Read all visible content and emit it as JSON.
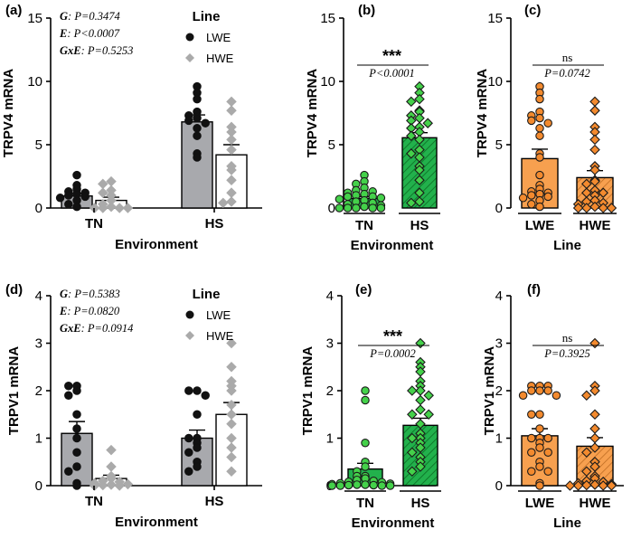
{
  "colors": {
    "lwe_bar": "#a8a9ad",
    "hwe_bar": "#ffffff",
    "lwe_pt": "#111111",
    "hwe_pt": "#aaaaaa",
    "green_bar": "#22b14c",
    "green_pt": "#44d14a",
    "orange_bar": "#f7a04f",
    "orange_pt": "#f38a2e"
  },
  "chart_data": [
    {
      "panel": "(a)",
      "type": "bar",
      "ylabel": "TRPV4 mRNA",
      "xlabel": "Environment",
      "ylim": [
        0,
        15
      ],
      "yticks": [
        0,
        5,
        10,
        15
      ],
      "categories": [
        "TN",
        "HS"
      ],
      "legend": {
        "title": "Line",
        "position": "top-right",
        "items": [
          "LWE",
          "HWE"
        ]
      },
      "stats": [
        {
          "term": "G",
          "value": ": P=0.3474"
        },
        {
          "term": "E",
          "value": ": P<0.0007"
        },
        {
          "term": "GxE",
          "value": ": P=0.5253"
        }
      ],
      "series": [
        {
          "name": "LWE",
          "values": [
            0.95,
            6.8
          ],
          "sem": [
            0.2,
            0.55
          ],
          "points": [
            [
              2.6,
              1.8,
              1.5,
              1.3,
              1.2,
              1.1,
              1.0,
              0.9,
              0.8,
              0.6,
              0.3,
              0.1
            ],
            [
              9.6,
              9.1,
              8.6,
              7.6,
              7.3,
              7.1,
              6.9,
              6.7,
              6.3,
              5.7,
              4.3,
              4.0
            ]
          ]
        },
        {
          "name": "HWE",
          "values": [
            0.6,
            4.2
          ],
          "sem": [
            0.25,
            0.8
          ],
          "points": [
            [
              2.1,
              1.9,
              1.4,
              1.2,
              1.0,
              0.6,
              0.3,
              0.1,
              0.0,
              0.0,
              0.0,
              0.0
            ],
            [
              8.4,
              7.7,
              6.4,
              6.0,
              5.4,
              4.6,
              3.3,
              3.0,
              2.2,
              1.2,
              0.5,
              0.4
            ]
          ]
        }
      ]
    },
    {
      "panel": "(b)",
      "type": "bar",
      "ylabel": "TRPV4 mRNA",
      "xlabel": "Environment",
      "ylim": [
        0,
        15
      ],
      "yticks": [
        0,
        5,
        10,
        15
      ],
      "categories": [
        "TN",
        "HS"
      ],
      "significance": "***",
      "p_text": "P<0.0001",
      "values": [
        0.75,
        5.55
      ],
      "sem": [
        0.15,
        0.4
      ],
      "points": [
        [
          2.6,
          2.1,
          1.9,
          1.6,
          1.4,
          1.3,
          1.2,
          1.1,
          1.0,
          0.9,
          0.9,
          0.8,
          0.7,
          0.6,
          0.5,
          0.4,
          0.3,
          0.2,
          0.1,
          0.0,
          0.0,
          0.0,
          0.0,
          0.0
        ],
        [
          9.6,
          9.1,
          8.6,
          8.4,
          7.7,
          7.6,
          7.3,
          7.1,
          6.9,
          6.7,
          6.4,
          6.3,
          6.0,
          5.7,
          5.4,
          4.6,
          4.3,
          4.0,
          3.3,
          3.0,
          2.2,
          1.2,
          0.5,
          0.4
        ]
      ]
    },
    {
      "panel": "(c)",
      "type": "bar",
      "ylabel": "TRPV4 mRNA",
      "xlabel": "Line",
      "ylim": [
        0,
        15
      ],
      "yticks": [
        0,
        5,
        10,
        15
      ],
      "categories": [
        "LWE",
        "HWE"
      ],
      "significance": "ns",
      "p_text": "P=0.0742",
      "values": [
        3.9,
        2.4
      ],
      "sem": [
        0.75,
        0.55
      ],
      "points": [
        [
          9.6,
          9.1,
          8.6,
          7.6,
          7.3,
          7.1,
          6.9,
          6.7,
          6.3,
          5.7,
          4.3,
          4.0,
          2.6,
          1.8,
          1.5,
          1.3,
          1.2,
          1.1,
          1.0,
          0.9,
          0.8,
          0.6,
          0.3,
          0.1
        ],
        [
          8.4,
          7.7,
          6.4,
          6.0,
          5.4,
          4.6,
          3.3,
          3.0,
          2.2,
          2.1,
          1.9,
          1.4,
          1.2,
          1.2,
          1.0,
          0.6,
          0.5,
          0.4,
          0.3,
          0.1,
          0.0,
          0.0,
          0.0,
          0.0
        ]
      ]
    },
    {
      "panel": "(d)",
      "type": "bar",
      "ylabel": "TRPV1 mRNA",
      "xlabel": "Environment",
      "ylim": [
        0,
        4
      ],
      "yticks": [
        0,
        1,
        2,
        3,
        4
      ],
      "categories": [
        "TN",
        "HS"
      ],
      "legend": {
        "title": "Line",
        "position": "top-right",
        "items": [
          "LWE",
          "HWE"
        ]
      },
      "stats": [
        {
          "term": "G",
          "value": ": P=0.5383"
        },
        {
          "term": "E",
          "value": ": P=0.0820"
        },
        {
          "term": "GxE",
          "value": ": P=0.0914"
        }
      ],
      "series": [
        {
          "name": "LWE",
          "values": [
            1.1,
            1.0
          ],
          "sem": [
            0.25,
            0.17
          ],
          "points": [
            [
              2.1,
              2.1,
              2.0,
              1.9,
              1.5,
              1.2,
              1.0,
              0.7,
              0.4,
              0.3,
              0.05,
              0.0
            ],
            [
              2.0,
              2.0,
              1.9,
              1.5,
              1.0,
              1.0,
              0.9,
              0.8,
              0.7,
              0.5,
              0.4,
              0.3
            ]
          ]
        },
        {
          "name": "HWE",
          "values": [
            0.15,
            1.5
          ],
          "sem": [
            0.07,
            0.25
          ],
          "points": [
            [
              0.75,
              0.4,
              0.2,
              0.15,
              0.1,
              0.08,
              0.05,
              0.03,
              0.02,
              0.01,
              0.0,
              0.0
            ],
            [
              3.0,
              2.5,
              2.2,
              2.1,
              2.0,
              1.7,
              1.5,
              1.3,
              1.0,
              0.8,
              0.6,
              0.3
            ]
          ]
        }
      ]
    },
    {
      "panel": "(e)",
      "type": "bar",
      "ylabel": "TRPV1 mRNA",
      "xlabel": "Environment",
      "ylim": [
        0,
        4
      ],
      "yticks": [
        0,
        1,
        2,
        3,
        4
      ],
      "categories": [
        "TN",
        "HS"
      ],
      "significance": "***",
      "p_text": "P=0.0002",
      "values": [
        0.35,
        1.27
      ],
      "sem": [
        0.12,
        0.15
      ],
      "points": [
        [
          2.0,
          1.8,
          0.9,
          0.5,
          0.4,
          0.3,
          0.2,
          0.2,
          0.15,
          0.12,
          0.1,
          0.08,
          0.07,
          0.05,
          0.04,
          0.03,
          0.02,
          0.02,
          0.01,
          0.01,
          0.0,
          0.0,
          0.0,
          0.0
        ],
        [
          3.0,
          2.6,
          2.5,
          2.4,
          2.2,
          2.1,
          2.0,
          2.0,
          1.9,
          1.8,
          1.6,
          1.5,
          1.5,
          1.3,
          1.1,
          1.0,
          1.0,
          0.9,
          0.8,
          0.7,
          0.6,
          0.5,
          0.4,
          0.3
        ]
      ]
    },
    {
      "panel": "(f)",
      "type": "bar",
      "ylabel": "TRPV1 mRNA",
      "xlabel": "Line",
      "ylim": [
        0,
        4
      ],
      "yticks": [
        0,
        1,
        2,
        3,
        4
      ],
      "categories": [
        "LWE",
        "HWE"
      ],
      "significance": "ns",
      "p_text": "P=0.3925",
      "values": [
        1.05,
        0.83
      ],
      "sem": [
        0.15,
        0.18
      ],
      "points": [
        [
          2.1,
          2.1,
          2.1,
          2.0,
          2.0,
          2.0,
          1.9,
          1.9,
          1.5,
          1.5,
          1.2,
          1.0,
          1.0,
          1.0,
          0.9,
          0.8,
          0.7,
          0.7,
          0.5,
          0.4,
          0.3,
          0.3,
          0.05,
          0.0
        ],
        [
          3.0,
          2.1,
          2.0,
          1.9,
          1.5,
          1.2,
          1.0,
          0.8,
          0.7,
          0.5,
          0.4,
          0.3,
          0.2,
          0.15,
          0.1,
          0.08,
          0.05,
          0.03,
          0.02,
          0.01,
          0.0,
          0.0,
          0.0,
          0.0
        ]
      ]
    }
  ]
}
